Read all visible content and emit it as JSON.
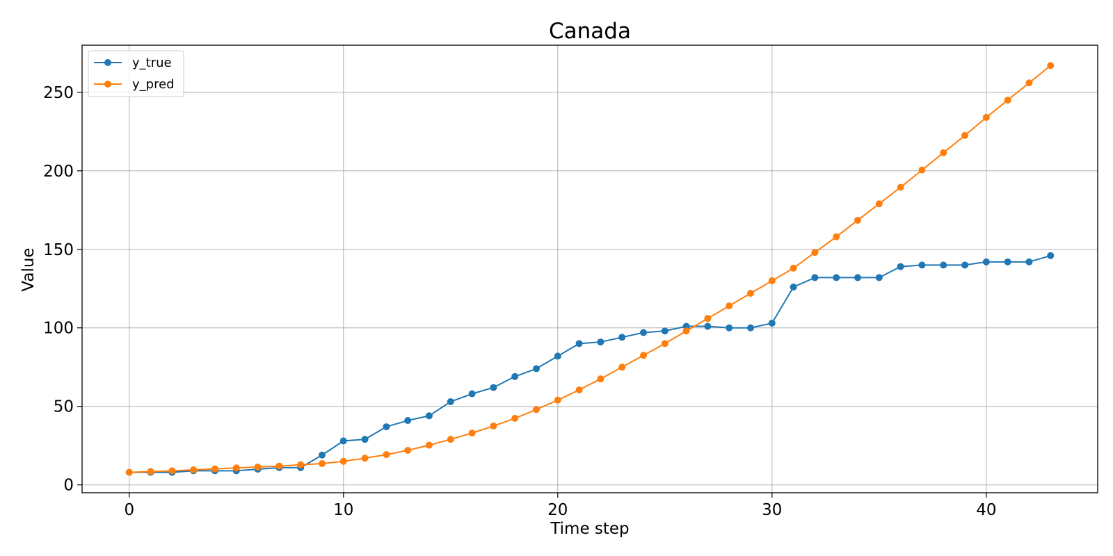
{
  "chart_data": {
    "type": "line",
    "title": "Canada",
    "xlabel": "Time step",
    "ylabel": "Value",
    "xlim": [
      -2.2,
      45.2
    ],
    "ylim": [
      -5,
      280
    ],
    "xticks": [
      0,
      10,
      20,
      30,
      40
    ],
    "yticks": [
      0,
      50,
      100,
      150,
      200,
      250
    ],
    "grid": true,
    "legend_position": "top-left",
    "x": [
      0,
      1,
      2,
      3,
      4,
      5,
      6,
      7,
      8,
      9,
      10,
      11,
      12,
      13,
      14,
      15,
      16,
      17,
      18,
      19,
      20,
      21,
      22,
      23,
      24,
      25,
      26,
      27,
      28,
      29,
      30,
      31,
      32,
      33,
      34,
      35,
      36,
      37,
      38,
      39,
      40,
      41,
      42,
      43
    ],
    "series": [
      {
        "name": "y_true",
        "color": "#1f77b4",
        "values": [
          8,
          8,
          8,
          9,
          9,
          9,
          10,
          11,
          11,
          19,
          28,
          29,
          37,
          41,
          44,
          53,
          58,
          62,
          69,
          74,
          82,
          90,
          91,
          94,
          97,
          98,
          101,
          101,
          100,
          100,
          103,
          126,
          132,
          132,
          132,
          132,
          139,
          140,
          140,
          140,
          142,
          142,
          142,
          146
        ]
      },
      {
        "name": "y_pred",
        "color": "#ff7f0e",
        "values": [
          8,
          8.5,
          9,
          9.6,
          10.2,
          10.8,
          11.4,
          12,
          12.8,
          13.6,
          15,
          17,
          19.3,
          22,
          25.3,
          29,
          33,
          37.5,
          42.4,
          48,
          54,
          60.5,
          67.5,
          75,
          82.5,
          90,
          98,
          106,
          114,
          122,
          130,
          138,
          148,
          158,
          168.5,
          179,
          189.5,
          200.5,
          211.5,
          222.5,
          234,
          245,
          256,
          267
        ]
      }
    ]
  }
}
